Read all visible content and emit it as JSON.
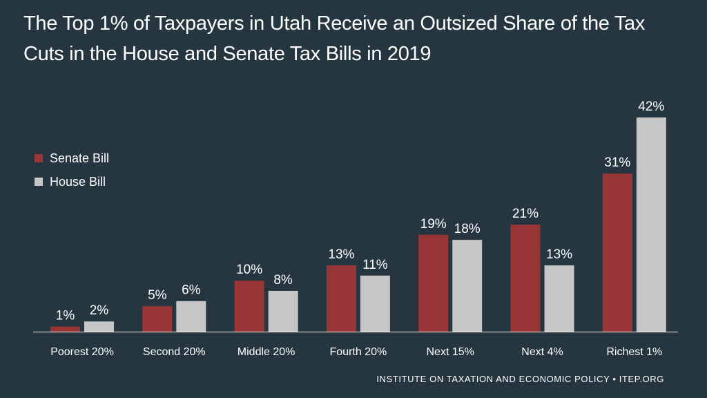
{
  "title": "The Top 1% of Taxpayers in Utah Receive an Outsized Share of the Tax Cuts in the House and Senate Tax Bills in 2019",
  "source": "INSTITUTE ON TAXATION AND ECONOMIC POLICY • ITEP.ORG",
  "colors": {
    "background": "#253640",
    "senate": "#983537",
    "house": "#c6c6c6",
    "text": "#ffffff"
  },
  "chart_data": {
    "type": "bar",
    "title": "The Top 1% of Taxpayers in Utah Receive an Outsized Share of the Tax Cuts in the House and Senate Tax Bills in 2019",
    "xlabel": "",
    "ylabel": "",
    "ylim": [
      0,
      45
    ],
    "grid": false,
    "legend_position": "left",
    "categories": [
      "Poorest 20%",
      "Second 20%",
      "Middle 20%",
      "Fourth 20%",
      "Next 15%",
      "Next 4%",
      "Richest 1%"
    ],
    "series": [
      {
        "name": "Senate Bill",
        "values": [
          1,
          5,
          10,
          13,
          19,
          21,
          31
        ],
        "labels": [
          "1%",
          "5%",
          "10%",
          "13%",
          "19%",
          "21%",
          "31%"
        ]
      },
      {
        "name": "House Bill",
        "values": [
          2,
          6,
          8,
          11,
          18,
          13,
          42
        ],
        "labels": [
          "2%",
          "6%",
          "8%",
          "11%",
          "18%",
          "13%",
          "42%"
        ]
      }
    ]
  }
}
